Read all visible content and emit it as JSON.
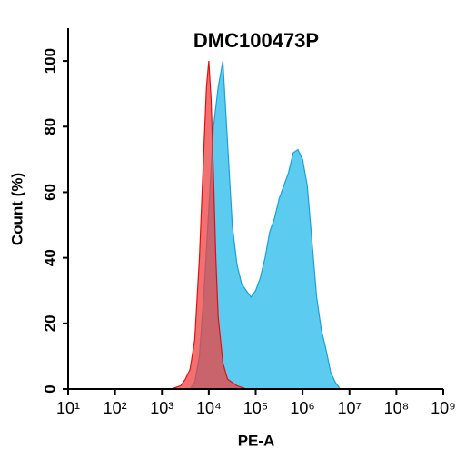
{
  "chart_data": {
    "type": "area",
    "title": "DMC100473P",
    "xlabel": "PE-A",
    "ylabel": "Count  (%)",
    "xscale": "log",
    "xlim": [
      10,
      1000000000
    ],
    "ylim": [
      0,
      110
    ],
    "xticks": [
      {
        "value": 10,
        "label": "10¹"
      },
      {
        "value": 100,
        "label": "10²"
      },
      {
        "value": 1000,
        "label": "10³"
      },
      {
        "value": 10000,
        "label": "10⁴"
      },
      {
        "value": 100000,
        "label": "10⁵"
      },
      {
        "value": 1000000,
        "label": "10⁶"
      },
      {
        "value": 10000000,
        "label": "10⁷"
      },
      {
        "value": 100000000,
        "label": "10⁸"
      },
      {
        "value": 1000000000,
        "label": "10⁹"
      }
    ],
    "yticks": [
      0,
      20,
      40,
      60,
      80,
      100
    ],
    "series": [
      {
        "color": "#1aa0d8",
        "fill": "#5ccbf0",
        "x": [
          3981,
          5012,
          6310,
          7943,
          10000,
          12589,
          15849,
          19953,
          25119,
          31623,
          39811,
          50119,
          63096,
          79433,
          100000,
          125893,
          158489,
          199526,
          251189,
          316228,
          398107,
          501187,
          630957,
          794328,
          1000000,
          1258925,
          1584893,
          1995262,
          2511886,
          3162278,
          3981072,
          5011872,
          6309573
        ],
        "values": [
          0,
          2,
          10,
          30,
          55,
          80,
          92,
          100,
          75,
          50,
          38,
          32,
          30,
          28,
          30,
          34,
          40,
          48,
          52,
          58,
          62,
          66,
          72,
          73,
          70,
          62,
          45,
          28,
          18,
          12,
          5,
          2,
          0
        ]
      },
      {
        "color": "#e01010",
        "fill": "#ee4040",
        "x": [
          1585,
          2512,
          3162,
          3981,
          5012,
          6310,
          7943,
          8913,
          10000,
          11220,
          12589,
          14125,
          15849,
          19953,
          25119,
          39811,
          63096
        ],
        "values": [
          0,
          1,
          3,
          6,
          15,
          40,
          75,
          92,
          100,
          88,
          65,
          40,
          22,
          8,
          3,
          1,
          0
        ]
      }
    ]
  }
}
